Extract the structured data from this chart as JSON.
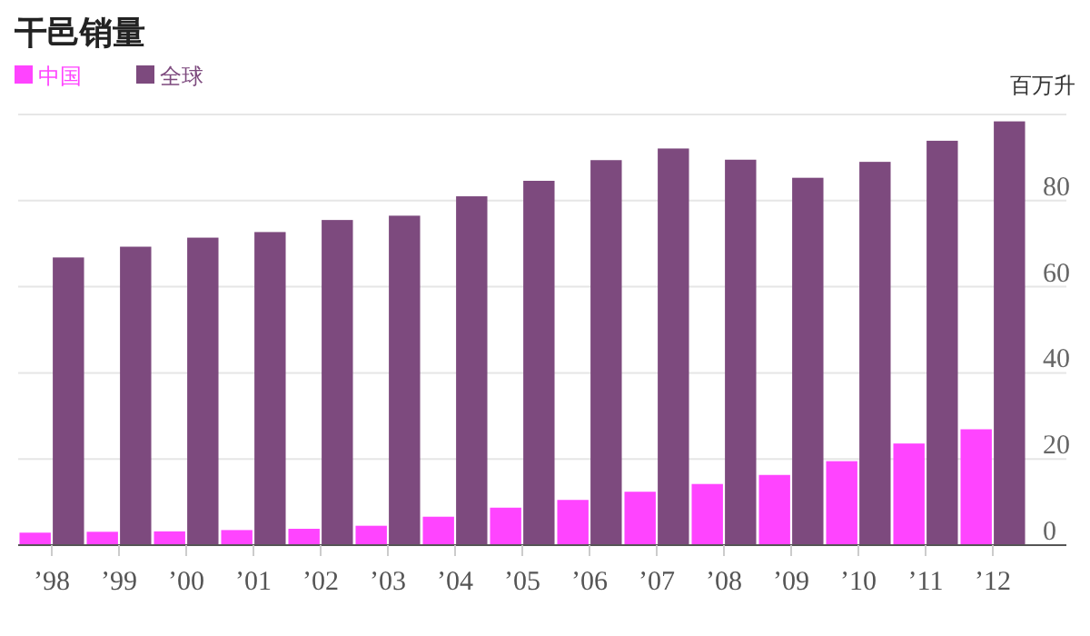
{
  "chart_data": {
    "type": "bar",
    "title": "干邑销量",
    "ylabel": "百万升",
    "categories": [
      "’98",
      "’99",
      "’00",
      "’01",
      "’02",
      "’03",
      "’04",
      "’05",
      "’06",
      "’07",
      "’08",
      "’09",
      "’10",
      "’11",
      "’12"
    ],
    "series": [
      {
        "name": "中国",
        "color": "#ff44ff",
        "values": [
          2.9,
          3.1,
          3.2,
          3.5,
          3.8,
          4.5,
          6.6,
          8.7,
          10.5,
          12.4,
          14.2,
          16.3,
          19.5,
          23.6,
          26.9
        ]
      },
      {
        "name": "全球",
        "color": "#7d4a7e",
        "values": [
          66.8,
          69.3,
          71.4,
          72.7,
          75.5,
          76.5,
          81.0,
          84.6,
          89.4,
          92.1,
          89.5,
          85.3,
          89.0,
          93.9,
          98.4
        ]
      }
    ],
    "ylim": [
      0,
      100
    ],
    "yticks": [
      0,
      20,
      40,
      60,
      80,
      {
        "value": 100,
        "label": null
      }
    ],
    "grid": "y",
    "legend": "top left"
  }
}
